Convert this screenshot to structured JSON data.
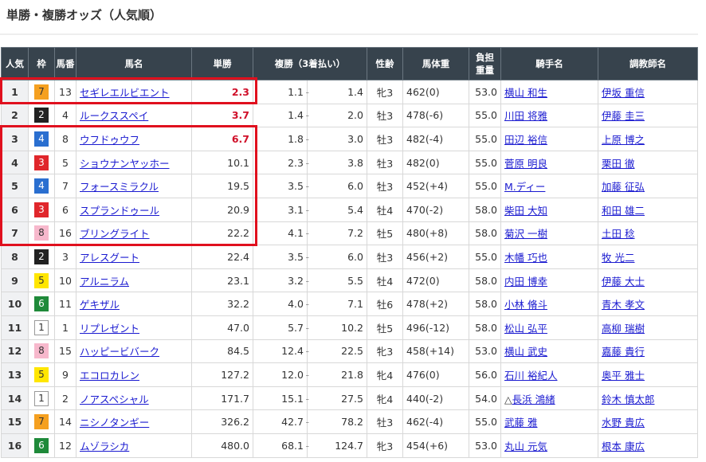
{
  "title": "単勝・複勝オッズ（人気順）",
  "headers": [
    "人気",
    "枠",
    "馬番",
    "馬名",
    "単勝",
    "複勝（3着払い）",
    "性齢",
    "馬体重",
    "負担重量",
    "騎手名",
    "調教師名"
  ],
  "waku_colors": {
    "1": [
      "#ffffff",
      "#333"
    ],
    "2": [
      "#222222",
      "#fff"
    ],
    "3": [
      "#e0262b",
      "#fff"
    ],
    "4": [
      "#2a6fd0",
      "#fff"
    ],
    "5": [
      "#ffe600",
      "#333"
    ],
    "6": [
      "#1f8a3a",
      "#fff"
    ],
    "7": [
      "#f5a020",
      "#333"
    ],
    "8": [
      "#f7b8cc",
      "#333"
    ]
  },
  "rows": [
    {
      "pop": "1",
      "waku": "7",
      "num": "13",
      "horse": "セギレエルビエント",
      "win": "2.3",
      "hot": true,
      "pl_lo": "1.1",
      "pl_hi": "1.4",
      "sex": "牝3",
      "weight": "462(0)",
      "load": "53.0",
      "jockey_mark": "",
      "jockey": "横山 和生",
      "trainer": "伊坂 重信"
    },
    {
      "pop": "2",
      "waku": "2",
      "num": "4",
      "horse": "ルークススペイ",
      "win": "3.7",
      "hot": true,
      "pl_lo": "1.4",
      "pl_hi": "2.0",
      "sex": "牡3",
      "weight": "478(-6)",
      "load": "55.0",
      "jockey_mark": "",
      "jockey": "川田 将雅",
      "trainer": "伊藤 圭三"
    },
    {
      "pop": "3",
      "waku": "4",
      "num": "8",
      "horse": "ウフドゥウフ",
      "win": "6.7",
      "hot": true,
      "pl_lo": "1.8",
      "pl_hi": "3.0",
      "sex": "牡3",
      "weight": "482(-4)",
      "load": "55.0",
      "jockey_mark": "",
      "jockey": "田辺 裕信",
      "trainer": "上原 博之"
    },
    {
      "pop": "4",
      "waku": "3",
      "num": "5",
      "horse": "ショウナンヤッホー",
      "win": "10.1",
      "hot": false,
      "pl_lo": "2.3",
      "pl_hi": "3.8",
      "sex": "牡3",
      "weight": "482(0)",
      "load": "55.0",
      "jockey_mark": "",
      "jockey": "菅原 明良",
      "trainer": "栗田 徹"
    },
    {
      "pop": "5",
      "waku": "4",
      "num": "7",
      "horse": "フォースミラクル",
      "win": "19.5",
      "hot": false,
      "pl_lo": "3.5",
      "pl_hi": "6.0",
      "sex": "牡3",
      "weight": "452(+4)",
      "load": "55.0",
      "jockey_mark": "",
      "jockey": "M.ディー",
      "trainer": "加藤 征弘"
    },
    {
      "pop": "6",
      "waku": "3",
      "num": "6",
      "horse": "スプランドゥール",
      "win": "20.9",
      "hot": false,
      "pl_lo": "3.1",
      "pl_hi": "5.4",
      "sex": "牡4",
      "weight": "470(-2)",
      "load": "58.0",
      "jockey_mark": "",
      "jockey": "柴田 大知",
      "trainer": "和田 雄二"
    },
    {
      "pop": "7",
      "waku": "8",
      "num": "16",
      "horse": "ブリングライト",
      "win": "22.2",
      "hot": false,
      "pl_lo": "4.1",
      "pl_hi": "7.2",
      "sex": "牡5",
      "weight": "480(+8)",
      "load": "58.0",
      "jockey_mark": "",
      "jockey": "菊沢 一樹",
      "trainer": "土田 稔"
    },
    {
      "pop": "8",
      "waku": "2",
      "num": "3",
      "horse": "アレスグート",
      "win": "22.4",
      "hot": false,
      "pl_lo": "3.5",
      "pl_hi": "6.0",
      "sex": "牡3",
      "weight": "456(+2)",
      "load": "55.0",
      "jockey_mark": "",
      "jockey": "木幡 巧也",
      "trainer": "牧 光二"
    },
    {
      "pop": "9",
      "waku": "5",
      "num": "10",
      "horse": "アルニラム",
      "win": "23.1",
      "hot": false,
      "pl_lo": "3.2",
      "pl_hi": "5.5",
      "sex": "牡4",
      "weight": "472(0)",
      "load": "58.0",
      "jockey_mark": "",
      "jockey": "内田 博幸",
      "trainer": "伊藤 大士"
    },
    {
      "pop": "10",
      "waku": "6",
      "num": "11",
      "horse": "ゲキザル",
      "win": "32.2",
      "hot": false,
      "pl_lo": "4.0",
      "pl_hi": "7.1",
      "sex": "牡6",
      "weight": "478(+2)",
      "load": "58.0",
      "jockey_mark": "",
      "jockey": "小林 脩斗",
      "trainer": "青木 孝文"
    },
    {
      "pop": "11",
      "waku": "1",
      "num": "1",
      "horse": "リプレゼント",
      "win": "47.0",
      "hot": false,
      "pl_lo": "5.7",
      "pl_hi": "10.2",
      "sex": "牡5",
      "weight": "496(-12)",
      "load": "58.0",
      "jockey_mark": "",
      "jockey": "松山 弘平",
      "trainer": "高柳 瑞樹"
    },
    {
      "pop": "12",
      "waku": "8",
      "num": "15",
      "horse": "ハッピービバーク",
      "win": "84.5",
      "hot": false,
      "pl_lo": "12.4",
      "pl_hi": "22.5",
      "sex": "牝3",
      "weight": "458(+14)",
      "load": "53.0",
      "jockey_mark": "",
      "jockey": "横山 武史",
      "trainer": "嘉藤 貴行"
    },
    {
      "pop": "13",
      "waku": "5",
      "num": "9",
      "horse": "エコロカレン",
      "win": "127.2",
      "hot": false,
      "pl_lo": "12.0",
      "pl_hi": "21.8",
      "sex": "牝4",
      "weight": "476(0)",
      "load": "56.0",
      "jockey_mark": "",
      "jockey": "石川 裕紀人",
      "trainer": "奥平 雅士"
    },
    {
      "pop": "14",
      "waku": "1",
      "num": "2",
      "horse": "ノアスペシャル",
      "win": "171.7",
      "hot": false,
      "pl_lo": "15.1",
      "pl_hi": "27.5",
      "sex": "牝4",
      "weight": "440(-2)",
      "load": "54.0",
      "jockey_mark": "△",
      "jockey": "長浜 鴻緒",
      "trainer": "鈴木 慎太郎"
    },
    {
      "pop": "15",
      "waku": "7",
      "num": "14",
      "horse": "ニシノタンギー",
      "win": "326.2",
      "hot": false,
      "pl_lo": "42.7",
      "pl_hi": "78.2",
      "sex": "牡3",
      "weight": "462(-4)",
      "load": "55.0",
      "jockey_mark": "",
      "jockey": "武藤 雅",
      "trainer": "水野 貴広"
    },
    {
      "pop": "16",
      "waku": "6",
      "num": "12",
      "horse": "ムゾラシカ",
      "win": "480.0",
      "hot": false,
      "pl_lo": "68.1",
      "pl_hi": "124.7",
      "sex": "牝3",
      "weight": "454(+6)",
      "load": "53.0",
      "jockey_mark": "",
      "jockey": "丸山 元気",
      "trainer": "根本 康広"
    }
  ]
}
